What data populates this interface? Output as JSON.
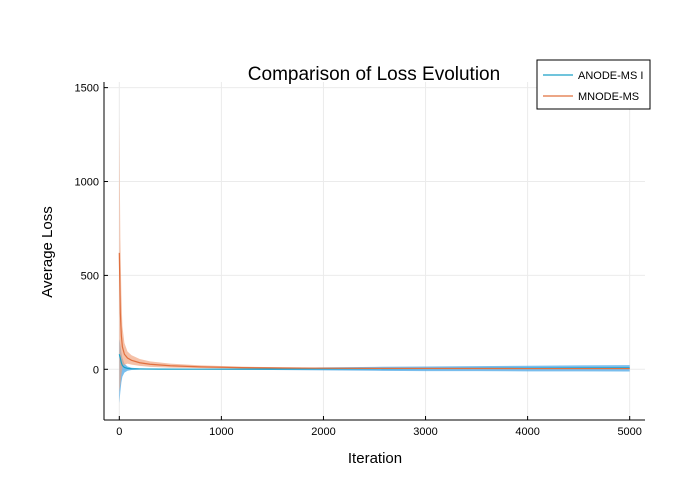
{
  "chart_data": {
    "type": "line",
    "title": "Comparison of Loss Evolution",
    "xlabel": "Iteration",
    "ylabel": "Average Loss",
    "xlim": [
      -150,
      5150
    ],
    "ylim": [
      -270,
      1530
    ],
    "xticks": [
      0,
      1000,
      2000,
      3000,
      4000,
      5000
    ],
    "yticks": [
      0,
      500,
      1000,
      1500
    ],
    "grid": true,
    "legend_position": "top-right",
    "series": [
      {
        "name": "ANODE-MS I",
        "color": "#1aa0c8",
        "band_color": "#4ca8e8",
        "x": [
          0,
          10,
          20,
          30,
          50,
          80,
          120,
          200,
          400,
          800,
          1500,
          2000,
          2500,
          3000,
          3500,
          4000,
          4500,
          5000
        ],
        "mean": [
          80,
          60,
          35,
          20,
          10,
          5,
          3,
          2,
          1,
          0.5,
          1,
          2,
          3,
          4,
          5,
          6,
          7,
          8
        ],
        "upper": [
          160,
          130,
          90,
          60,
          30,
          15,
          8,
          5,
          3,
          2,
          6,
          10,
          13,
          15,
          17,
          19,
          21,
          22
        ],
        "lower": [
          -180,
          -120,
          -70,
          -40,
          -18,
          -8,
          -4,
          -2,
          -1,
          -1,
          -4,
          -6,
          -8,
          -10,
          -10,
          -11,
          -11,
          -12
        ]
      },
      {
        "name": "MNODE-MS",
        "color": "#e0703f",
        "band_color": "#f0a07a",
        "x": [
          0,
          10,
          20,
          30,
          50,
          80,
          120,
          200,
          300,
          500,
          800,
          1200,
          1600,
          2000,
          2500,
          3000,
          4000,
          5000
        ],
        "mean": [
          620,
          300,
          180,
          120,
          80,
          60,
          48,
          35,
          27,
          19,
          13,
          9,
          7,
          6,
          5,
          5,
          4,
          4
        ],
        "upper": [
          1350,
          700,
          400,
          230,
          140,
          95,
          75,
          55,
          42,
          30,
          21,
          14,
          11,
          9,
          8,
          7,
          6,
          6
        ],
        "lower": [
          -120,
          -80,
          -30,
          10,
          25,
          30,
          25,
          18,
          13,
          9,
          6,
          4,
          3,
          2,
          2,
          1,
          1,
          1
        ]
      }
    ]
  }
}
